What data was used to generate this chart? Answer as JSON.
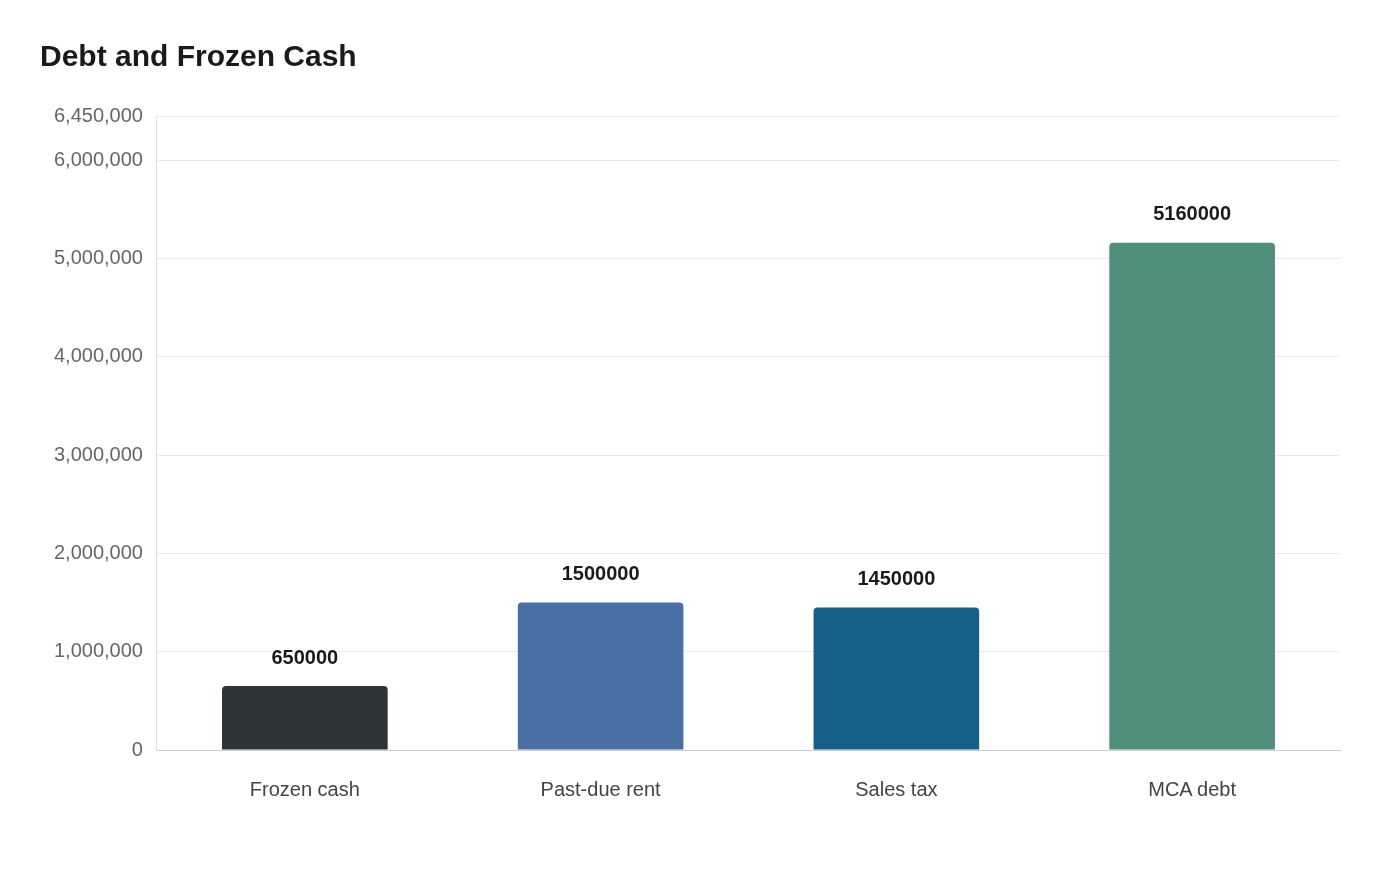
{
  "chart_data": {
    "type": "bar",
    "title": "Debt and Frozen Cash",
    "categories": [
      "Frozen cash",
      "Past-due rent",
      "Sales tax",
      "MCA debt"
    ],
    "values": [
      650000,
      1500000,
      1450000,
      5160000
    ],
    "colors": [
      "#2d3436",
      "#4a6fa5",
      "#166088",
      "#4f8f7b"
    ],
    "ylim": [
      0,
      6450000
    ],
    "yticks": [
      0,
      {
        "value": 1000000,
        "label": "1,000,000"
      },
      {
        "value": 2000000,
        "label": "2,000,000"
      },
      {
        "value": 3000000,
        "label": "3,000,000"
      },
      {
        "value": 4000000,
        "label": "4,000,000"
      },
      {
        "value": 5000000,
        "label": "5,000,000"
      },
      {
        "value": 6000000,
        "label": "6,000,000"
      },
      {
        "value": 6450000,
        "label": "6,450,000"
      }
    ],
    "grid": "y",
    "data_labels": true
  }
}
